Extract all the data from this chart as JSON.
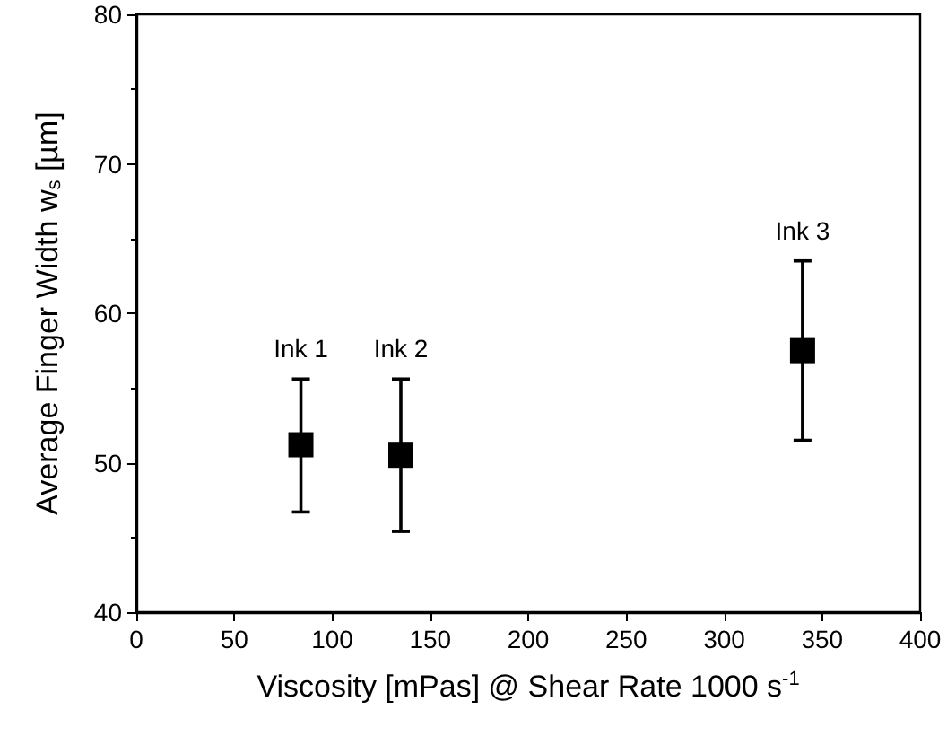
{
  "chart_data": {
    "type": "scatter",
    "xlabel": "Viscosity [mPas] @ Shear Rate 1000 s$^{-1}$",
    "ylabel": "Average Finger Width w$_{s}$ [µm]",
    "x": [
      84,
      135,
      340
    ],
    "values": [
      51.2,
      50.5,
      57.5
    ],
    "errors": [
      [
        46.7,
        55.6
      ],
      [
        45.4,
        55.6
      ],
      [
        51.5,
        63.5
      ]
    ],
    "color": "#000000",
    "marker": "square",
    "xlim": [
      0,
      400
    ],
    "xticks": [
      0,
      50,
      100,
      150,
      200,
      250,
      300,
      350,
      400
    ],
    "ylim": [
      40,
      80
    ],
    "yticks": [
      40,
      50,
      60,
      70,
      80
    ],
    "annotations": [
      {
        "text": "Ink 1",
        "x": 84,
        "y": 55.6
      },
      {
        "text": "Ink 2",
        "x": 135,
        "y": 55.6
      },
      {
        "text": "Ink 3",
        "x": 340,
        "y": 63.5
      }
    ]
  }
}
